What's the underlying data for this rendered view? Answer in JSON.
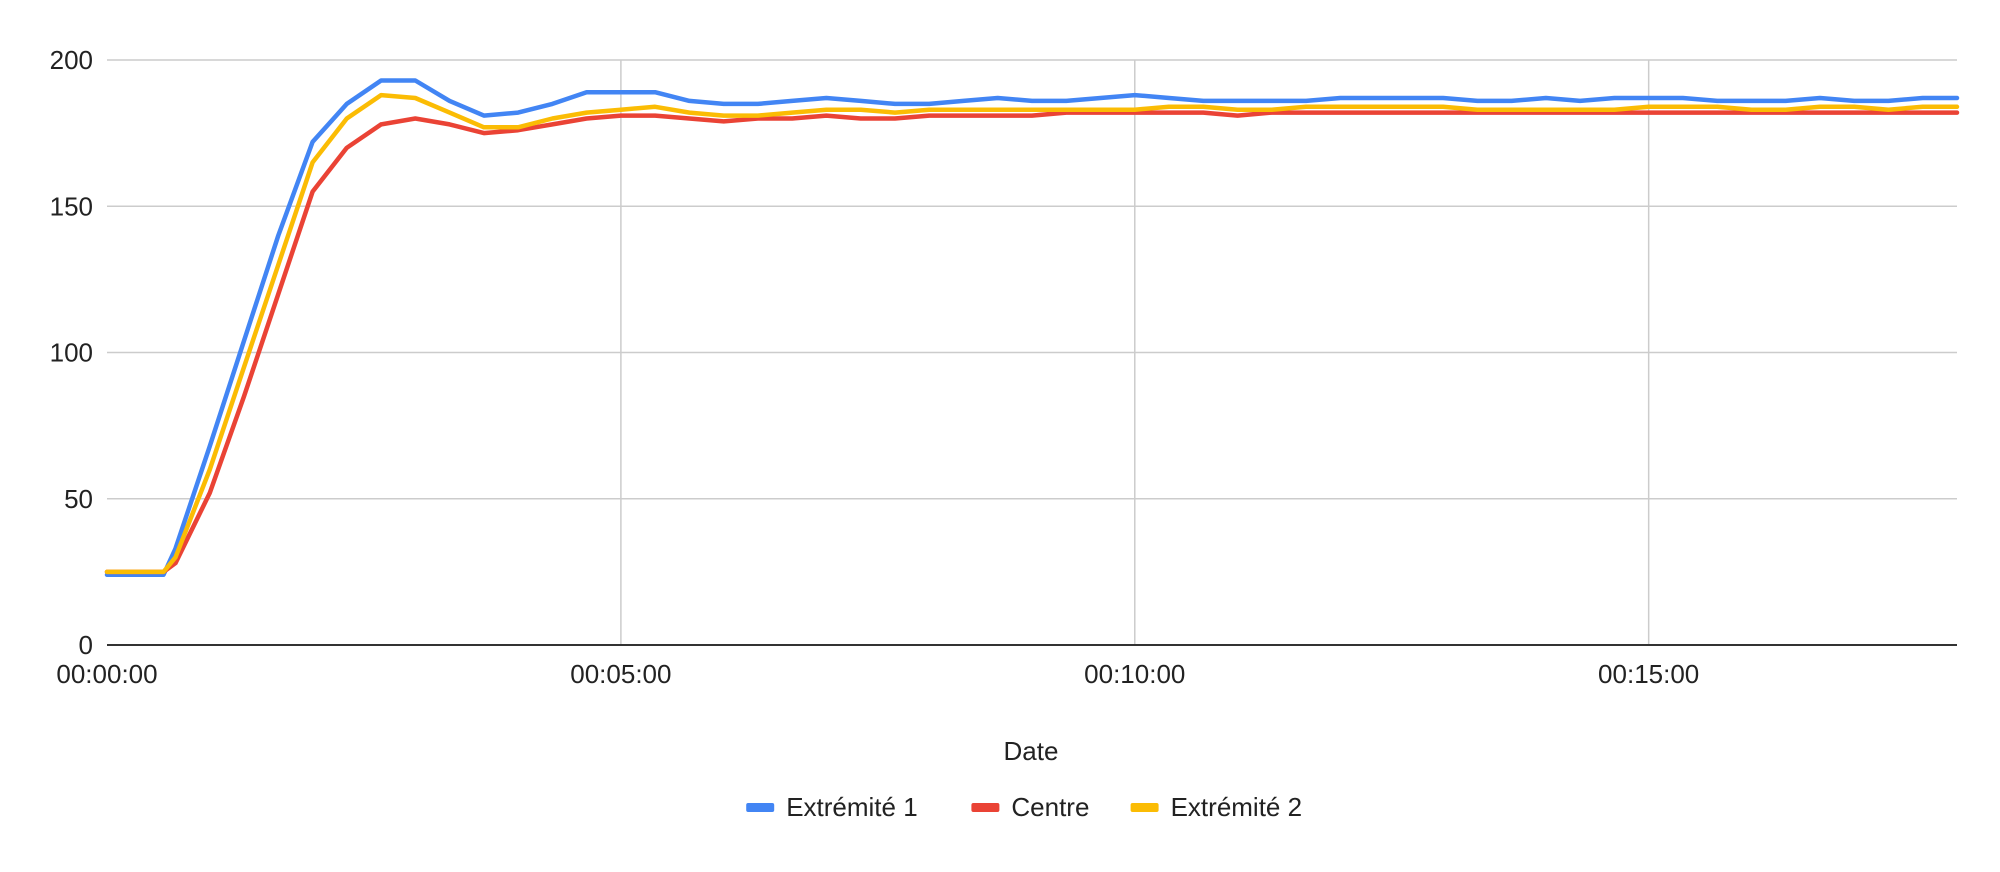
{
  "chart_data": {
    "type": "line",
    "title": "",
    "xlabel": "Date",
    "ylabel": "",
    "xlim": [
      0,
      1080
    ],
    "ylim": [
      0,
      200
    ],
    "x_unit": "seconds elapsed (hh:mm:ss)",
    "x_ticks": [
      {
        "value": 0,
        "label": "00:00:00"
      },
      {
        "value": 300,
        "label": "00:05:00"
      },
      {
        "value": 600,
        "label": "00:10:00"
      },
      {
        "value": 900,
        "label": "00:15:00"
      }
    ],
    "y_ticks": [
      {
        "value": 0,
        "label": "0"
      },
      {
        "value": 50,
        "label": "50"
      },
      {
        "value": 100,
        "label": "100"
      },
      {
        "value": 150,
        "label": "150"
      },
      {
        "value": 200,
        "label": "200"
      }
    ],
    "grid": true,
    "legend_position": "bottom",
    "x": [
      0,
      33,
      40,
      60,
      80,
      100,
      120,
      140,
      160,
      180,
      200,
      220,
      240,
      260,
      280,
      300,
      320,
      340,
      360,
      380,
      400,
      420,
      440,
      460,
      480,
      500,
      520,
      540,
      560,
      580,
      600,
      620,
      640,
      660,
      680,
      700,
      720,
      740,
      760,
      780,
      800,
      820,
      840,
      860,
      880,
      900,
      920,
      940,
      960,
      980,
      1000,
      1020,
      1040,
      1060,
      1080
    ],
    "series": [
      {
        "name": "Extrémité 1",
        "color": "#4285F4",
        "values": [
          24,
          24,
          33,
          68,
          104,
          140,
          172,
          185,
          193,
          193,
          186,
          181,
          182,
          185,
          189,
          189,
          189,
          186,
          185,
          185,
          186,
          187,
          186,
          185,
          185,
          186,
          187,
          186,
          186,
          187,
          188,
          187,
          186,
          186,
          186,
          186,
          187,
          187,
          187,
          187,
          186,
          186,
          187,
          186,
          187,
          187,
          187,
          186,
          186,
          186,
          187,
          186,
          186,
          187,
          187
        ]
      },
      {
        "name": "Centre",
        "color": "#EA4335",
        "values": [
          25,
          25,
          28,
          52,
          85,
          120,
          155,
          170,
          178,
          180,
          178,
          175,
          176,
          178,
          180,
          181,
          181,
          180,
          179,
          180,
          180,
          181,
          180,
          180,
          181,
          181,
          181,
          181,
          182,
          182,
          182,
          182,
          182,
          181,
          182,
          182,
          182,
          182,
          182,
          182,
          182,
          182,
          182,
          182,
          182,
          182,
          182,
          182,
          182,
          182,
          182,
          182,
          182,
          182,
          182
        ]
      },
      {
        "name": "Extrémité 2",
        "color": "#FBBC04",
        "values": [
          25,
          25,
          30,
          60,
          95,
          130,
          165,
          180,
          188,
          187,
          182,
          177,
          177,
          180,
          182,
          183,
          184,
          182,
          181,
          181,
          182,
          183,
          183,
          182,
          183,
          183,
          183,
          183,
          183,
          183,
          183,
          184,
          184,
          183,
          183,
          184,
          184,
          184,
          184,
          184,
          183,
          183,
          183,
          183,
          183,
          184,
          184,
          184,
          183,
          183,
          184,
          184,
          183,
          184,
          184
        ]
      }
    ]
  }
}
